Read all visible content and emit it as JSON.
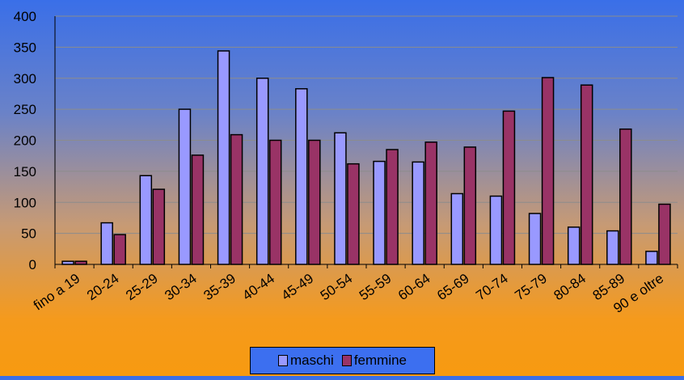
{
  "chart_data": {
    "type": "bar",
    "categories": [
      "fino a 19",
      "20-24",
      "25-29",
      "30-34",
      "35-39",
      "40-44",
      "45-49",
      "50-54",
      "55-59",
      "60-64",
      "65-69",
      "70-74",
      "75-79",
      "80-84",
      "85-89",
      "90 e oltre"
    ],
    "series": [
      {
        "name": "maschi",
        "color": "#9999ff",
        "values": [
          5,
          67,
          143,
          250,
          344,
          300,
          283,
          212,
          166,
          165,
          114,
          110,
          82,
          60,
          54,
          21
        ]
      },
      {
        "name": "femmine",
        "color": "#993366",
        "values": [
          5,
          48,
          121,
          176,
          209,
          200,
          200,
          162,
          185,
          197,
          189,
          247,
          301,
          289,
          218,
          97
        ]
      }
    ],
    "ylim": [
      0,
      400
    ],
    "yticks": [
      0,
      50,
      100,
      150,
      200,
      250,
      300,
      350,
      400
    ],
    "grid": true,
    "legend_position": "bottom"
  }
}
